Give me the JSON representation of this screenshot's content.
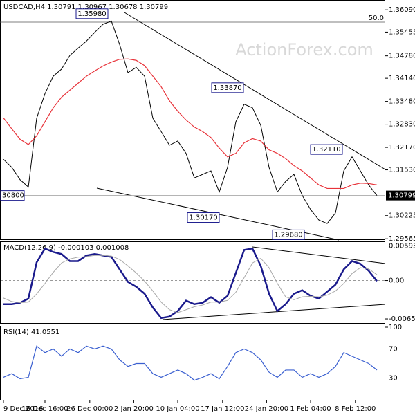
{
  "watermark": "ActionForex.com",
  "chart_data": [
    {
      "type": "line",
      "title": "USDCAD,H4  1.30791 1.30967 1.30678 1.30799",
      "ylim": [
        1.2953,
        1.3637
      ],
      "yticks": [
        {
          "value": 1.3609,
          "label": "1.36090"
        },
        {
          "value": 1.35455,
          "label": "1.35455"
        },
        {
          "value": 1.3478,
          "label": "1.34780"
        },
        {
          "value": 1.3414,
          "label": "1.34140"
        },
        {
          "value": 1.3348,
          "label": "1.33480"
        },
        {
          "value": 1.3283,
          "label": "1.32830"
        },
        {
          "value": 1.3217,
          "label": "1.32170"
        },
        {
          "value": 1.3153,
          "label": "1.31530"
        },
        {
          "value": 1.30225,
          "label": "1.30225"
        },
        {
          "value": 1.29565,
          "label": "1.29565"
        }
      ],
      "series": [
        {
          "name": "USDCAD",
          "color": "#000000",
          "values": [
            1.3183,
            1.316,
            1.3125,
            1.3104,
            1.33,
            1.337,
            1.342,
            1.344,
            1.3479,
            1.35,
            1.352,
            1.3545,
            1.3568,
            1.3577,
            1.351,
            1.343,
            1.3445,
            1.342,
            1.33,
            1.3262,
            1.3223,
            1.3235,
            1.32,
            1.313,
            1.314,
            1.315,
            1.309,
            1.316,
            1.329,
            1.334,
            1.333,
            1.328,
            1.316,
            1.309,
            1.312,
            1.314,
            1.308,
            1.304,
            1.301,
            1.3,
            1.303,
            1.315,
            1.319,
            1.315,
            1.311,
            1.30799
          ]
        },
        {
          "name": "MA",
          "color": "#e8333a",
          "values": [
            1.3301,
            1.327,
            1.324,
            1.3225,
            1.325,
            1.329,
            1.333,
            1.336,
            1.338,
            1.34,
            1.342,
            1.3435,
            1.3449,
            1.346,
            1.3468,
            1.3469,
            1.3465,
            1.345,
            1.342,
            1.339,
            1.335,
            1.332,
            1.3295,
            1.3275,
            1.3262,
            1.3245,
            1.3215,
            1.319,
            1.32,
            1.323,
            1.3242,
            1.3235,
            1.321,
            1.32,
            1.3185,
            1.3165,
            1.315,
            1.313,
            1.311,
            1.31,
            1.31,
            1.31,
            1.311,
            1.3115,
            1.3114,
            1.311
          ]
        }
      ],
      "annotations": [
        {
          "value": 1.3598,
          "label": "1.35980"
        },
        {
          "value": 1.3387,
          "label": "1.33870"
        },
        {
          "value": 1.3211,
          "label": "1.32110"
        },
        {
          "value": 1.3017,
          "label": "1.30170"
        },
        {
          "value": 1.2968,
          "label": "1.29680"
        }
      ],
      "last_price": {
        "value": 1.30799,
        "label": "1.30799"
      },
      "hline_label": "30800",
      "fib_label": "50.0"
    },
    {
      "type": "line",
      "title": "MACD(12,26,9) -0.000103 0.001008",
      "ylim": [
        -0.0074,
        0.0067
      ],
      "yticks": [
        0.00593,
        {
          "value": 0,
          "label": "0.00"
        },
        -0.006575
      ],
      "series": [
        {
          "name": "MACD",
          "color": "#1a1a8c",
          "values": [
            -0.00405,
            -0.00405,
            -0.00381,
            -0.0031,
            0.0031,
            0.00548,
            0.00488,
            0.00453,
            0.00333,
            0.00333,
            0.00429,
            0.00453,
            0.00429,
            0.00405,
            0.00191,
            -0.00024,
            -0.00107,
            -0.00226,
            -0.00464,
            -0.00643,
            -0.00619,
            -0.00524,
            -0.00345,
            -0.00405,
            -0.00381,
            -0.00286,
            -0.00381,
            -0.00262,
            0.00131,
            0.00524,
            0.00548,
            0.0025,
            -0.00226,
            -0.00524,
            -0.00405,
            -0.00226,
            -0.00167,
            -0.00262,
            -0.0031,
            -0.00191,
            -0.00071,
            0.00191,
            0.00333,
            0.00286,
            0.00167,
            -0.000103
          ]
        },
        {
          "name": "Signal",
          "color": "#a8a8a8",
          "values": [
            -0.003,
            -0.0036,
            -0.0038,
            -0.0037,
            -0.0023,
            -0.0005,
            0.0014,
            0.003,
            0.0037,
            0.004,
            0.0041,
            0.0043,
            0.0043,
            0.0042,
            0.0036,
            0.0025,
            0.0013,
            -0.0001,
            -0.0018,
            -0.0037,
            -0.005,
            -0.0055,
            -0.005,
            -0.0045,
            -0.0042,
            -0.0037,
            -0.0037,
            -0.0034,
            -0.002,
            0.0005,
            0.003,
            0.0038,
            0.0022,
            -0.0005,
            -0.0028,
            -0.0033,
            -0.0028,
            -0.0027,
            -0.0028,
            -0.0025,
            -0.0018,
            -0.0005,
            0.0012,
            0.0022,
            0.002,
            0.001008
          ]
        }
      ]
    },
    {
      "type": "line",
      "title": "RSI(14) 41.0551",
      "ylim": [
        0,
        100
      ],
      "yticks": [
        100,
        70,
        30
      ],
      "xlim": [
        0,
        45
      ],
      "xticks": [
        {
          "value": 0,
          "label": "9 Dec 2016"
        },
        {
          "value": 5,
          "label": "16 Dec 16:00"
        },
        {
          "value": 10.4,
          "label": "26 Dec 00:00"
        },
        {
          "value": 15.7,
          "label": "2 Jan 20:00"
        },
        {
          "value": 21,
          "label": "10 Jan 04:00"
        },
        {
          "value": 26.4,
          "label": "17 Jan 12:00"
        },
        {
          "value": 31.7,
          "label": "24 Jan 20:00"
        },
        {
          "value": 37,
          "label": "1 Feb 04:00"
        },
        {
          "value": 42.4,
          "label": "8 Feb 12:00"
        }
      ],
      "series": [
        {
          "name": "RSI",
          "color": "#3a5fd0",
          "values": [
            31,
            36,
            29,
            31,
            74,
            65,
            70,
            60,
            70,
            65,
            74,
            70,
            74,
            70,
            55,
            46,
            50,
            50,
            36,
            31,
            36,
            41,
            36,
            27,
            31,
            36,
            29,
            46,
            65,
            70,
            65,
            55,
            38,
            31,
            41,
            41,
            31,
            36,
            31,
            36,
            46,
            65,
            60,
            55,
            50,
            41.0551
          ]
        }
      ]
    }
  ]
}
